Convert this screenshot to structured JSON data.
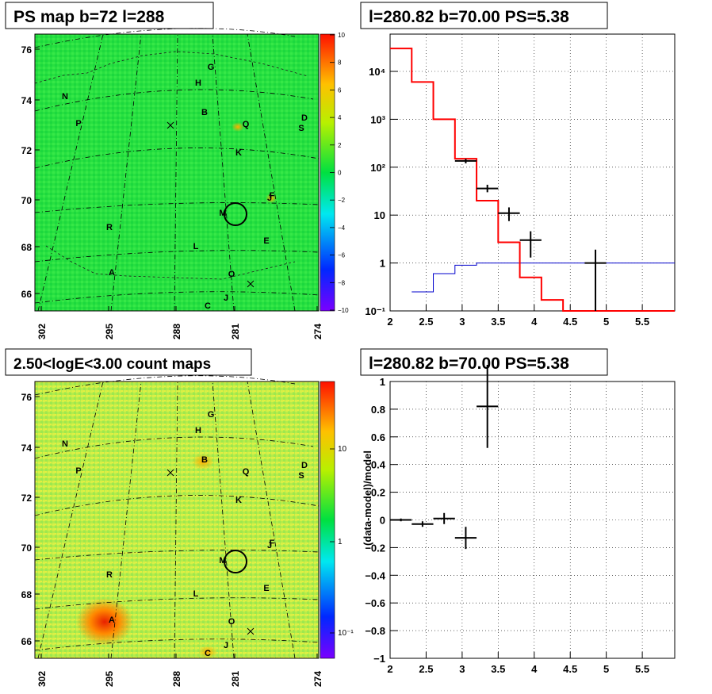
{
  "colors": {
    "model_histogram": "#ff0000",
    "point_source_model": "#0000cc",
    "data_points": "#000000",
    "residuals": "#000000",
    "ps_map_background": "#22e04a",
    "count_map_background": "#c8ee46",
    "highlight_circle": "#000000"
  },
  "chart_data": [
    {
      "type": "heatmap",
      "title": "PS map b=72 l=288",
      "x_ticks": [
        "302",
        "295",
        "288",
        "281",
        "274"
      ],
      "y_ticks": [
        "76",
        "74",
        "72",
        "70",
        "68",
        "66"
      ],
      "colorbar": {
        "scale": "linear",
        "range": [
          -10,
          10
        ],
        "ticks": [
          "10",
          "8",
          "6",
          "4",
          "2",
          "0",
          "−2",
          "−4",
          "−6",
          "−8",
          "−10"
        ]
      },
      "grid": true,
      "source_labels": [
        "G",
        "H",
        "N",
        "B",
        "P",
        "Q",
        "D",
        "S",
        "K",
        "F",
        "J",
        "M",
        "R",
        "E",
        "L",
        "A",
        "O",
        "J",
        "C"
      ],
      "highlight": {
        "label": "M",
        "marker": "circle"
      }
    },
    {
      "type": "line",
      "title": "l=280.82 b=70.00 PS=5.38",
      "x_ticks": [
        "2",
        "2.5",
        "3",
        "3.5",
        "4",
        "4.5",
        "5",
        "5.5"
      ],
      "xlim": [
        2,
        5.95
      ],
      "ylim": [
        0.1,
        60000
      ],
      "yscale": "log",
      "y_ticks": [
        "10⁻¹",
        "1",
        "10",
        "10²",
        "10³",
        "10⁴"
      ],
      "grid": true,
      "series": [
        {
          "kind": "step",
          "color": "red",
          "edges": [
            2.0,
            2.3,
            2.6,
            2.9,
            3.2,
            3.5,
            3.8,
            4.1,
            4.4,
            4.7,
            5.0,
            5.3,
            5.6,
            5.95
          ],
          "values": [
            30000,
            6000,
            1000,
            150,
            20,
            2.7,
            0.5,
            0.17,
            0.1,
            0.1,
            0.1,
            0.1,
            0.1
          ]
        },
        {
          "kind": "step",
          "color": "blue",
          "edges": [
            2.3,
            2.6,
            2.9,
            3.2,
            3.5,
            3.8,
            4.1,
            4.4,
            4.7,
            5.0,
            5.3,
            5.6,
            5.95
          ],
          "values": [
            0.25,
            0.6,
            0.9,
            1.0,
            1.0,
            1.0,
            1.0,
            1.0,
            1.0,
            1.0,
            1.0,
            1.0
          ]
        },
        {
          "kind": "points",
          "color": "black",
          "points": [
            {
              "x": 3.05,
              "y": 135,
              "xerr": 0.15,
              "ylo": 120,
              "yhi": 150
            },
            {
              "x": 3.35,
              "y": 36,
              "xerr": 0.15,
              "ylo": 30,
              "yhi": 43
            },
            {
              "x": 3.65,
              "y": 11,
              "xerr": 0.15,
              "ylo": 7.5,
              "yhi": 14.5
            },
            {
              "x": 3.95,
              "y": 3,
              "xerr": 0.15,
              "ylo": 1.3,
              "yhi": 4.6
            },
            {
              "x": 4.85,
              "y": 1.0,
              "xerr": 0.15,
              "ylo": 0.1,
              "yhi": 1.9
            }
          ]
        }
      ]
    },
    {
      "type": "heatmap",
      "title": "2.50<logE<3.00 count maps",
      "x_ticks": [
        "302",
        "295",
        "288",
        "281",
        "274"
      ],
      "y_ticks": [
        "76",
        "74",
        "72",
        "70",
        "68",
        "66"
      ],
      "colorbar": {
        "scale": "log",
        "ticks": [
          "10",
          "1",
          "10⁻¹"
        ]
      },
      "grid": true,
      "source_labels": [
        "G",
        "H",
        "N",
        "B",
        "P",
        "Q",
        "D",
        "S",
        "K",
        "F",
        "J",
        "M",
        "R",
        "E",
        "L",
        "A",
        "O",
        "J",
        "C"
      ],
      "highlight": {
        "label": "M",
        "marker": "circle"
      }
    },
    {
      "type": "scatter",
      "title": "l=280.82 b=70.00 PS=5.38",
      "ylabel": "(data-model)/model",
      "x_ticks": [
        "2",
        "2.5",
        "3",
        "3.5",
        "4",
        "4.5",
        "5",
        "5.5"
      ],
      "xlim": [
        2,
        5.95
      ],
      "ylim": [
        -1,
        1
      ],
      "y_ticks": [
        "1",
        "0.8",
        "0.6",
        "0.4",
        "0.2",
        "0",
        "−0.2",
        "−0.4",
        "−0.6",
        "−0.8",
        "−1"
      ],
      "grid": true,
      "series": [
        {
          "color": "black",
          "points": [
            {
              "x": 2.15,
              "y": 0.0,
              "xerr": 0.15,
              "yerr": 0.01
            },
            {
              "x": 2.45,
              "y": -0.03,
              "xerr": 0.15,
              "yerr": 0.02
            },
            {
              "x": 2.75,
              "y": 0.01,
              "xerr": 0.15,
              "yerr": 0.04
            },
            {
              "x": 3.05,
              "y": -0.13,
              "xerr": 0.15,
              "yerr": 0.08
            },
            {
              "x": 3.35,
              "y": 0.82,
              "xerr": 0.15,
              "yerr": 0.3
            }
          ]
        }
      ]
    }
  ]
}
